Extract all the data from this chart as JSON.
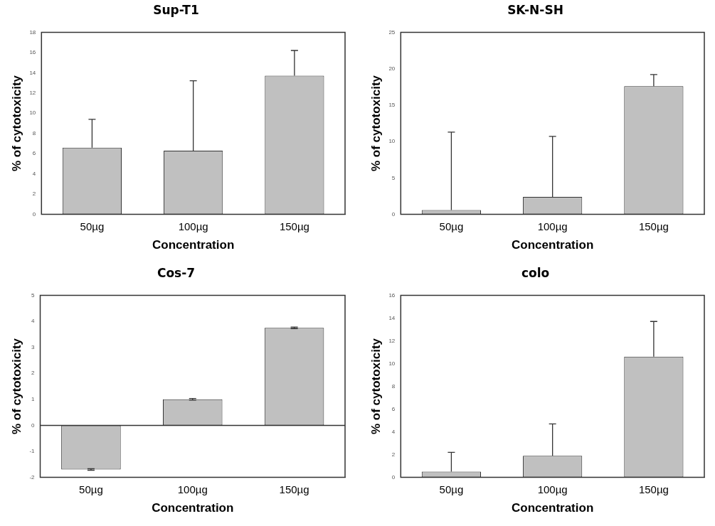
{
  "chart_data": [
    {
      "type": "bar",
      "title": "Sup-T1",
      "xlabel": "Concentration",
      "ylabel": "% of cytotoxicity",
      "categories": [
        "50µg",
        "100µg",
        "150µg"
      ],
      "color": "#c0c0c0",
      "values": [
        6.6,
        6.3,
        13.7
      ],
      "errors": [
        [
          6.6,
          9.4
        ],
        [
          6.3,
          13.2
        ],
        [
          13.7,
          16.2
        ]
      ],
      "ylim": [
        0,
        18
      ],
      "yticks": [
        0,
        2,
        4,
        6,
        8,
        10,
        12,
        14,
        16,
        18
      ],
      "grid": false,
      "legend": false
    },
    {
      "type": "bar",
      "title": "SK-N-SH",
      "xlabel": "Concentration",
      "ylabel": "% of cytotoxicity",
      "categories": [
        "50µg",
        "100µg",
        "150µg"
      ],
      "color": "#c0c0c0",
      "values": [
        0.6,
        2.4,
        17.6
      ],
      "errors": [
        [
          0.6,
          11.3
        ],
        [
          2.4,
          10.7
        ],
        [
          17.6,
          19.2
        ]
      ],
      "ylim": [
        0,
        25
      ],
      "yticks": [
        0,
        5,
        10,
        15,
        20,
        25
      ],
      "grid": false,
      "legend": false
    },
    {
      "type": "bar",
      "title": "Cos-7",
      "xlabel": "Concentration",
      "ylabel": "% of cytotoxicity",
      "categories": [
        "50µg",
        "100µg",
        "150µg"
      ],
      "color": "#c0c0c0",
      "values": [
        -1.7,
        1.0,
        3.75
      ],
      "errors": [
        0.03,
        0.03,
        0.03
      ],
      "ylim": [
        -2,
        5
      ],
      "yticks": [
        -2,
        -1,
        0,
        1,
        2,
        3,
        4,
        5
      ],
      "ref_lines": [
        {
          "axis": "y",
          "value": 0
        }
      ],
      "grid": false,
      "legend": false
    },
    {
      "type": "bar",
      "title": "colo",
      "xlabel": "Concentration",
      "ylabel": "% of cytotoxicity",
      "categories": [
        "50µg",
        "100µg",
        "150µg"
      ],
      "color": "#c0c0c0",
      "values": [
        0.5,
        1.9,
        10.6
      ],
      "errors": [
        [
          0.5,
          2.2
        ],
        [
          1.9,
          4.7
        ],
        [
          10.6,
          13.7
        ]
      ],
      "ylim": [
        0,
        16
      ],
      "yticks": [
        0,
        2,
        4,
        6,
        8,
        10,
        12,
        14,
        16
      ],
      "grid": false,
      "legend": false
    }
  ]
}
